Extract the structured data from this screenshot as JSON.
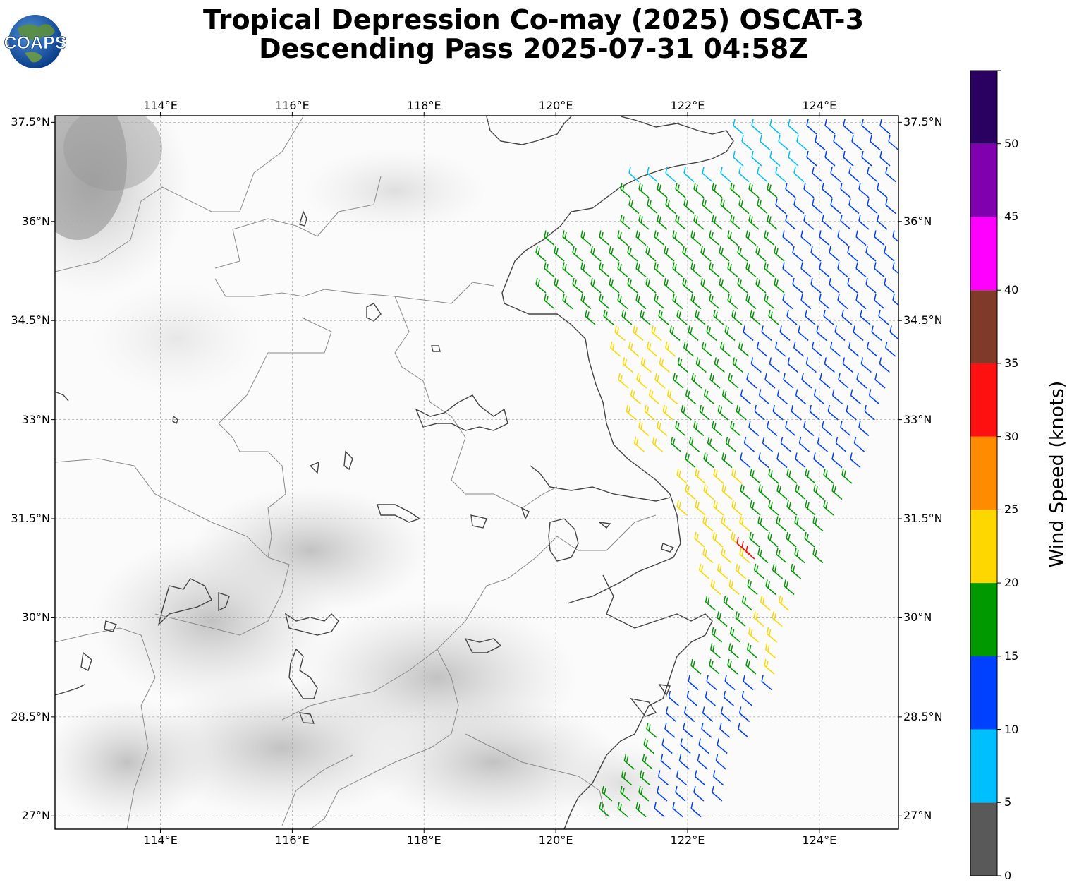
{
  "title": {
    "line1": "Tropical Depression Co-may (2025) OSCAT-3",
    "line2": "Descending Pass 2025-07-31 04:58Z"
  },
  "logo": {
    "text": "COAPS",
    "icon": "globe-logo-icon"
  },
  "map": {
    "lon_range": [
      112.4,
      125.2
    ],
    "lat_range": [
      26.8,
      37.6
    ],
    "lon_ticks": [
      {
        "value": 114,
        "label": "114°E"
      },
      {
        "value": 116,
        "label": "116°E"
      },
      {
        "value": 118,
        "label": "118°E"
      },
      {
        "value": 120,
        "label": "120°E"
      },
      {
        "value": 122,
        "label": "122°E"
      },
      {
        "value": 124,
        "label": "124°E"
      }
    ],
    "lat_ticks": [
      {
        "value": 37.5,
        "label": "37.5°N"
      },
      {
        "value": 36,
        "label": "36°N"
      },
      {
        "value": 34.5,
        "label": "34.5°N"
      },
      {
        "value": 33,
        "label": "33°N"
      },
      {
        "value": 31.5,
        "label": "31.5°N"
      },
      {
        "value": 30,
        "label": "30°N"
      },
      {
        "value": 28.5,
        "label": "28.5°N"
      },
      {
        "value": 27,
        "label": "27°N"
      }
    ],
    "grid": true
  },
  "colorbar": {
    "label": "Wind Speed (knots)",
    "ticks": [
      "0",
      "5",
      "10",
      "15",
      "20",
      "25",
      "30",
      "35",
      "40",
      "45",
      "50"
    ],
    "bins": [
      {
        "from": 0,
        "to": 5,
        "color": "#595959"
      },
      {
        "from": 5,
        "to": 10,
        "color": "#00bfff"
      },
      {
        "from": 10,
        "to": 15,
        "color": "#0040ff"
      },
      {
        "from": 15,
        "to": 20,
        "color": "#009900"
      },
      {
        "from": 20,
        "to": 25,
        "color": "#ffd700"
      },
      {
        "from": 25,
        "to": 30,
        "color": "#ff8c00"
      },
      {
        "from": 30,
        "to": 35,
        "color": "#ff1010"
      },
      {
        "from": 35,
        "to": 40,
        "color": "#803a29"
      },
      {
        "from": 40,
        "to": 45,
        "color": "#ff00ff"
      },
      {
        "from": 45,
        "to": 50,
        "color": "#8000b0"
      },
      {
        "from": 50,
        "to": 55,
        "color": "#2a0060"
      }
    ]
  }
}
